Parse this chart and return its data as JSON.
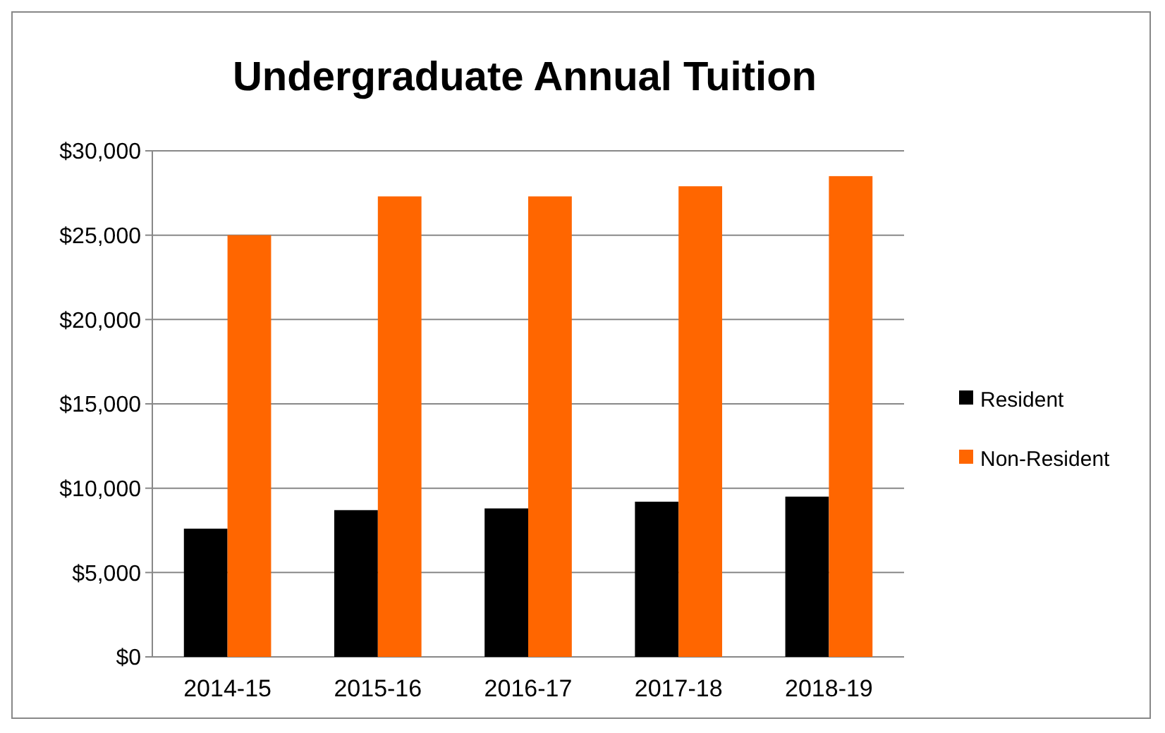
{
  "chart_data": {
    "type": "bar",
    "title": "Undergraduate Annual Tuition",
    "categories": [
      "2014-15",
      "2015-16",
      "2016-17",
      "2017-18",
      "2018-19"
    ],
    "series": [
      {
        "name": "Resident",
        "color": "#000000",
        "values": [
          7600,
          8700,
          8800,
          9200,
          9500
        ]
      },
      {
        "name": "Non-Resident",
        "color": "#ff6600",
        "values": [
          25000,
          27300,
          27300,
          27900,
          28500
        ]
      }
    ],
    "ylim": [
      0,
      30000
    ],
    "yticks": [
      {
        "value": 0,
        "label": "$0"
      },
      {
        "value": 5000,
        "label": "$5,000"
      },
      {
        "value": 10000,
        "label": "$10,000"
      },
      {
        "value": 15000,
        "label": "$15,000"
      },
      {
        "value": 20000,
        "label": "$20,000"
      },
      {
        "value": 25000,
        "label": "$25,000"
      },
      {
        "value": 30000,
        "label": "$30,000"
      }
    ],
    "grid": "y",
    "legend": "right"
  }
}
